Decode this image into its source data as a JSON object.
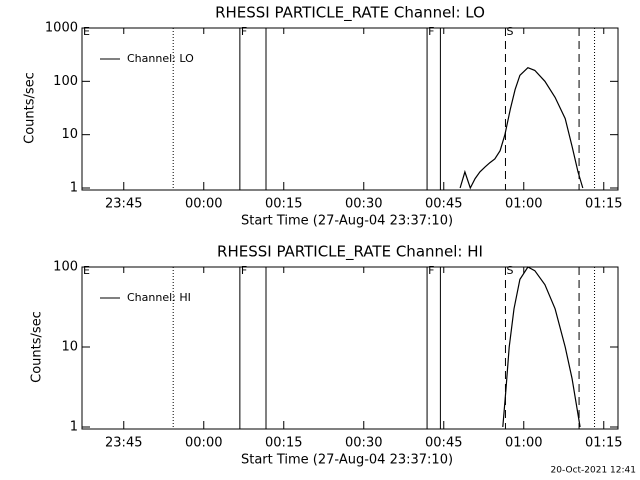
{
  "chart_data": [
    {
      "type": "line",
      "title": "RHESSI PARTICLE_RATE Channel: LO",
      "x_label": "Start Time (27-Aug-04 23:37:10)",
      "y_label": "Counts/sec",
      "log_y": true,
      "legend": "upper left",
      "xlim": [
        0,
        100.5
      ],
      "xticks": [
        {
          "value": 7.83,
          "label": "23:45"
        },
        {
          "value": 22.83,
          "label": "00:00"
        },
        {
          "value": 37.83,
          "label": "00:15"
        },
        {
          "value": 52.83,
          "label": "00:30"
        },
        {
          "value": 67.83,
          "label": "00:45"
        },
        {
          "value": 82.83,
          "label": "01:00"
        },
        {
          "value": 97.83,
          "label": "01:15"
        }
      ],
      "ylim": [
        1,
        1000
      ],
      "yticks": [
        1,
        10,
        100,
        {
          "value": 1000,
          "label": "1000"
        }
      ],
      "markers": [
        {
          "x": 0,
          "label": "E",
          "style": "none"
        },
        {
          "x": 17.1,
          "style": "dotted"
        },
        {
          "x": 29.6,
          "label": "F",
          "style": "solid"
        },
        {
          "x": 34.5,
          "style": "solid"
        },
        {
          "x": 64.7,
          "label": "F",
          "style": "solid"
        },
        {
          "x": 67.2,
          "style": "solid"
        },
        {
          "x": 79.4,
          "label": "S",
          "style": "dashed"
        },
        {
          "x": 93.2,
          "style": "dashed"
        },
        {
          "x": 96.1,
          "style": "dotted"
        }
      ],
      "series": [
        {
          "name": "Channel: LO",
          "color": "#000000",
          "x": [
            70.9,
            71.8,
            72.8,
            73.7,
            74.6,
            75.6,
            76.5,
            77.4,
            78.4,
            79.3,
            80.3,
            81.2,
            82.1,
            83.6,
            84.9,
            86.8,
            88.7,
            90.6,
            91.9,
            93.0,
            93.9
          ],
          "values": [
            1,
            2,
            1,
            1.5,
            2,
            2.5,
            3,
            3.5,
            5,
            10,
            30,
            70,
            130,
            180,
            160,
            100,
            50,
            20,
            6,
            2,
            1
          ]
        }
      ]
    },
    {
      "type": "line",
      "title": "RHESSI PARTICLE_RATE Channel: HI",
      "x_label": "Start Time (27-Aug-04 23:37:10)",
      "y_label": "Counts/sec",
      "log_y": true,
      "legend": "upper left",
      "xlim": [
        0,
        100.5
      ],
      "xticks": [
        {
          "value": 7.83,
          "label": "23:45"
        },
        {
          "value": 22.83,
          "label": "00:00"
        },
        {
          "value": 37.83,
          "label": "00:15"
        },
        {
          "value": 52.83,
          "label": "00:30"
        },
        {
          "value": 67.83,
          "label": "00:45"
        },
        {
          "value": 82.83,
          "label": "01:00"
        },
        {
          "value": 97.83,
          "label": "01:15"
        }
      ],
      "ylim": [
        1,
        100
      ],
      "yticks": [
        1,
        10,
        100
      ],
      "markers": [
        {
          "x": 0,
          "label": "E",
          "style": "none"
        },
        {
          "x": 17.1,
          "style": "dotted"
        },
        {
          "x": 29.6,
          "label": "F",
          "style": "solid"
        },
        {
          "x": 34.5,
          "style": "solid"
        },
        {
          "x": 64.7,
          "label": "F",
          "style": "solid"
        },
        {
          "x": 67.2,
          "style": "solid"
        },
        {
          "x": 79.4,
          "label": "S",
          "style": "dashed"
        },
        {
          "x": 93.2,
          "style": "dashed"
        },
        {
          "x": 96.1,
          "style": "dotted"
        }
      ],
      "series": [
        {
          "name": "Channel: HI",
          "color": "#000000",
          "x": [
            78.9,
            79.5,
            80.1,
            81.0,
            82.1,
            83.6,
            84.9,
            86.8,
            88.7,
            90.6,
            91.9,
            93.4
          ],
          "values": [
            1,
            3,
            10,
            30,
            70,
            100,
            90,
            60,
            30,
            10,
            4,
            1
          ]
        }
      ]
    }
  ],
  "footer": "20-Oct-2021 12:41"
}
